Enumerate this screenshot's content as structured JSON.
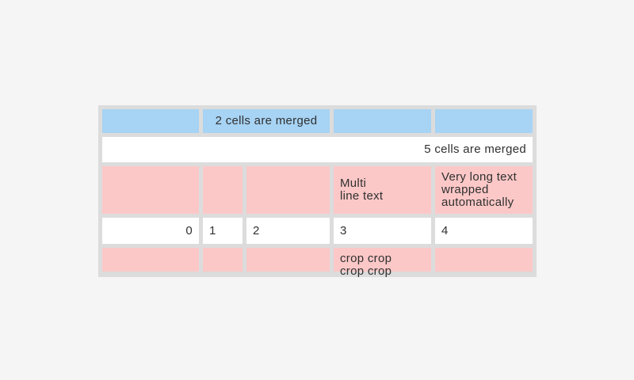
{
  "page": {
    "colors": {
      "page_bg": "#f5f5f5",
      "frame": "#dcdcdc",
      "header_cell": "#a7d3f4",
      "highlight_cell": "#fbc8c7",
      "plain_cell": "#ffffff",
      "text": "#303030"
    }
  },
  "table": {
    "row1": {
      "merged_label": "2 cells are merged"
    },
    "row2": {
      "merged_label": "5 cells are merged"
    },
    "row3": {
      "multiline_label": "Multi\nline text",
      "wrapped_label": "Very long text wrapped automatically"
    },
    "row4": {
      "values": [
        "0",
        "1",
        "2",
        "3",
        "4"
      ]
    },
    "row5": {
      "crop_label": "crop crop crop crop"
    }
  }
}
